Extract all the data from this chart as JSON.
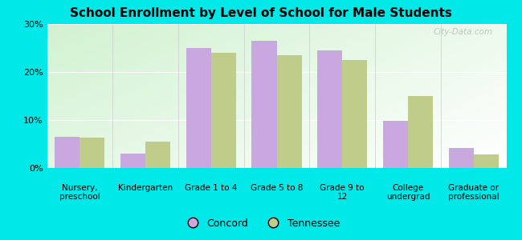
{
  "title": "School Enrollment by Level of School for Male Students",
  "categories": [
    "Nursery,\npreschool",
    "Kindergarten",
    "Grade 1 to 4",
    "Grade 5 to 8",
    "Grade 9 to\n12",
    "College\nundergrad",
    "Graduate or\nprofessional"
  ],
  "concord": [
    6.5,
    3.0,
    25.0,
    26.5,
    24.5,
    9.8,
    4.2
  ],
  "tennessee": [
    6.3,
    5.5,
    24.0,
    23.5,
    22.5,
    15.0,
    2.8
  ],
  "concord_color": "#c9a8e0",
  "tennessee_color": "#bfcc8a",
  "background_color": "#00e8e8",
  "ylim": [
    0,
    30
  ],
  "yticks": [
    0,
    10,
    20,
    30
  ],
  "ytick_labels": [
    "0%",
    "10%",
    "20%",
    "30%"
  ],
  "legend_concord": "Concord",
  "legend_tennessee": "Tennessee",
  "watermark": "City-Data.com",
  "bar_width": 0.38
}
